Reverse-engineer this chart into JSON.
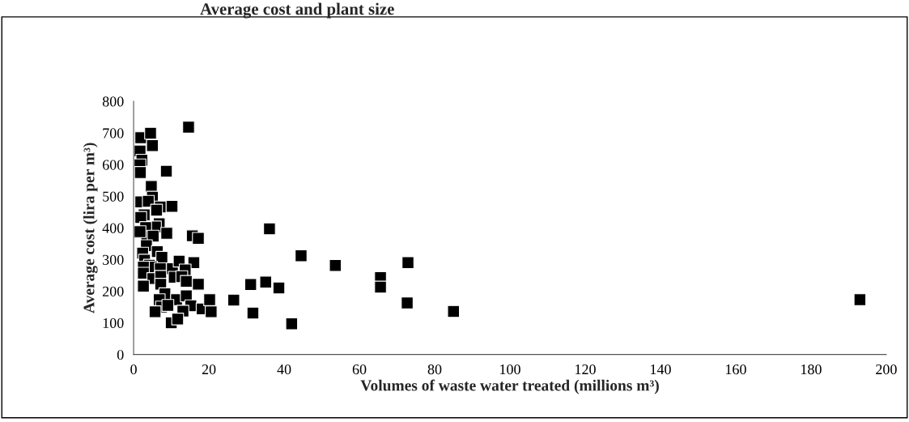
{
  "chart_data": {
    "type": "scatter",
    "title": "Average cost and plant size",
    "xlabel": "Volumes of waste water treated (millions m³)",
    "ylabel": "Average cost (lira per m³)",
    "xlim": [
      0,
      200
    ],
    "xticks": [
      0,
      20,
      40,
      60,
      80,
      100,
      120,
      140,
      160,
      180,
      200
    ],
    "ylim": [
      0,
      800
    ],
    "yticks": [
      0,
      100,
      200,
      300,
      400,
      500,
      600,
      700,
      800
    ],
    "marker": "square",
    "series": [
      {
        "color": "#000000",
        "x": [
          1.9,
          4.5,
          5.0,
          1.7,
          2.2,
          1.7,
          1.8,
          8.7,
          14.6,
          4.7,
          5.0,
          1.9,
          3.9,
          7.1,
          10.2,
          6.1,
          2.8,
          1.9,
          6.8,
          5.8,
          3.2,
          1.4,
          3.5,
          5.2,
          8.8,
          3.4,
          2.4,
          6.3,
          7.5,
          2.9,
          4.2,
          4.8,
          2.6,
          7.1,
          2.6,
          5.1,
          7.2,
          2.6,
          7.2,
          10.3,
          12.1,
          16.0,
          13.7,
          10.8,
          12.8,
          14.0,
          17.2,
          8.3,
          6.8,
          11.4,
          14.0,
          15.2,
          7.4,
          9.1,
          5.7,
          13.1,
          18.2,
          20.2,
          20.6,
          10.0,
          11.7,
          26.6,
          15.6,
          17.2,
          1.7,
          31.1,
          35.1,
          38.6,
          31.7,
          36.1,
          44.5,
          53.6,
          72.9,
          65.6,
          65.6,
          72.7,
          85.0,
          42.0,
          193.0
        ],
        "values": [
          685,
          699,
          660,
          643,
          614,
          599,
          575,
          579,
          718,
          531,
          497,
          482,
          484,
          466,
          468,
          456,
          441,
          433,
          413,
          403,
          401,
          386,
          372,
          374,
          383,
          344,
          320,
          325,
          307,
          298,
          282,
          276,
          276,
          271,
          257,
          240,
          247,
          216,
          222,
          271,
          295,
          290,
          267,
          244,
          246,
          231,
          222,
          192,
          173,
          173,
          185,
          154,
          150,
          155,
          135,
          137,
          144,
          173,
          135,
          100,
          112,
          172,
          375,
          367,
          388,
          221,
          229,
          210,
          131,
          397,
          312,
          281,
          290,
          243,
          213,
          163,
          136,
          97,
          173
        ]
      }
    ]
  }
}
